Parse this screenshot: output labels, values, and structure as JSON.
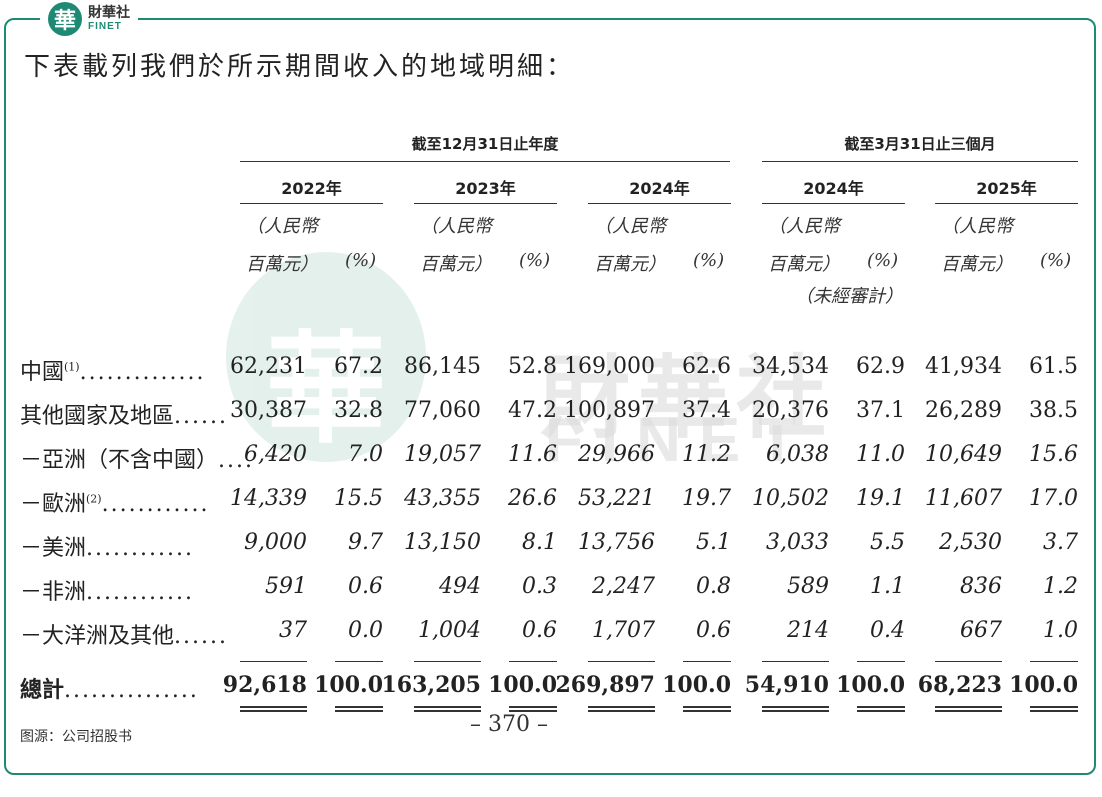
{
  "logo": {
    "cn": "財華社",
    "en": "FINET",
    "mark": "華"
  },
  "watermark": {
    "cn": "財華社",
    "en": "FINET",
    "mark": "華"
  },
  "heading": "下表載列我們於所示期間收入的地域明細：",
  "groups": [
    "截至12月31日止年度",
    "截至3月31日止三個月"
  ],
  "years": [
    "2022年",
    "2023年",
    "2024年",
    "2024年",
    "2025年"
  ],
  "unit_line1": "（人民幣",
  "unit_line2": "百萬元）",
  "pct_label": "(%)",
  "unaudited": "（未經審計）",
  "rows": [
    {
      "label": "中國",
      "sup": "(1)",
      "dots": "..............",
      "values": [
        "62,231",
        "67.2",
        "86,145",
        "52.8",
        "169,000",
        "62.6",
        "34,534",
        "62.9",
        "41,934",
        "61.5"
      ]
    },
    {
      "label": "其他國家及地區",
      "sup": "",
      "dots": "......",
      "values": [
        "30,387",
        "32.8",
        "77,060",
        "47.2",
        "100,897",
        "37.4",
        "20,376",
        "37.1",
        "26,289",
        "38.5"
      ]
    },
    {
      "label": "－亞洲（不含中國）",
      "sup": "",
      "dots": "....",
      "values": [
        "6,420",
        "7.0",
        "19,057",
        "11.6",
        "29,966",
        "11.2",
        "6,038",
        "11.0",
        "10,649",
        "15.6"
      ]
    },
    {
      "label": "－歐洲",
      "sup": "(2)",
      "dots": "............",
      "values": [
        "14,339",
        "15.5",
        "43,355",
        "26.6",
        "53,221",
        "19.7",
        "10,502",
        "19.1",
        "11,607",
        "17.0"
      ]
    },
    {
      "label": "－美洲",
      "sup": "",
      "dots": "............",
      "values": [
        "9,000",
        "9.7",
        "13,150",
        "8.1",
        "13,756",
        "5.1",
        "3,033",
        "5.5",
        "2,530",
        "3.7"
      ]
    },
    {
      "label": "－非洲",
      "sup": "",
      "dots": "............",
      "values": [
        "591",
        "0.6",
        "494",
        "0.3",
        "2,247",
        "0.8",
        "589",
        "1.1",
        "836",
        "1.2"
      ]
    },
    {
      "label": "－大洋洲及其他",
      "sup": "",
      "dots": "......",
      "values": [
        "37",
        "0.0",
        "1,004",
        "0.6",
        "1,707",
        "0.6",
        "214",
        "0.4",
        "667",
        "1.0"
      ]
    },
    {
      "label": "總計",
      "sup": "",
      "dots": "...............",
      "values": [
        "92,618",
        "100.0",
        "163,205",
        "100.0",
        "269,897",
        "100.0",
        "54,910",
        "100.0",
        "68,223",
        "100.0"
      ]
    }
  ],
  "page_number": "– 370 –",
  "source": "图源：公司招股书"
}
